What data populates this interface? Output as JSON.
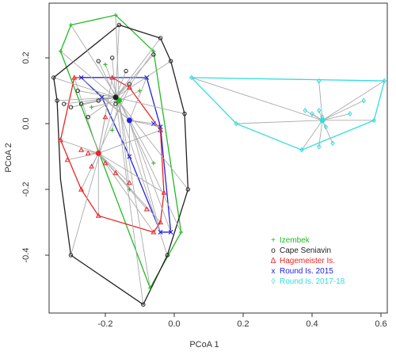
{
  "chart_data": {
    "type": "scatter",
    "title": "",
    "xlabel": "PCoA 1",
    "ylabel": "PCoA 2",
    "xlim": [
      -0.38,
      0.64
    ],
    "ylim": [
      -0.55,
      0.36
    ],
    "x_ticks": [
      -0.2,
      0.0,
      0.2,
      0.4,
      0.6
    ],
    "y_ticks": [
      -0.4,
      -0.2,
      0.0,
      0.2
    ],
    "x_tick_labels": [
      "-0.2",
      "0.0",
      "0.2",
      "0.4",
      "0.6"
    ],
    "y_tick_labels": [
      "-0.4",
      "-0.2",
      "0.0",
      "0.2"
    ],
    "grid": false,
    "legend_position": "bottom-right",
    "legend": [
      {
        "name": "Izembek",
        "symbol": "+",
        "color": "#22bb22"
      },
      {
        "name": "Cape Seniavin",
        "symbol": "o",
        "color": "#222222"
      },
      {
        "name": "Hagemeister Is.",
        "symbol": "Δ",
        "color": "#ee2222"
      },
      {
        "name": "Round Is. 2015",
        "symbol": "x",
        "color": "#2222dd"
      },
      {
        "name": "Round Is. 2017-18",
        "symbol": "◊",
        "color": "#33dddd"
      }
    ],
    "series": [
      {
        "name": "Izembek",
        "color": "#22bb22",
        "marker": "plus",
        "centroid": [
          -0.16,
          0.07
        ],
        "hull": [
          [
            -0.3,
            0.3
          ],
          [
            -0.17,
            0.33
          ],
          [
            -0.06,
            0.22
          ],
          [
            0.02,
            -0.33
          ],
          [
            -0.07,
            -0.5
          ],
          [
            -0.33,
            0.22
          ]
        ],
        "points": [
          [
            -0.3,
            0.3
          ],
          [
            -0.17,
            0.33
          ],
          [
            -0.06,
            0.22
          ],
          [
            0.02,
            -0.33
          ],
          [
            -0.07,
            -0.5
          ],
          [
            -0.33,
            0.22
          ],
          [
            -0.1,
            0.1
          ],
          [
            -0.18,
            -0.02
          ],
          [
            -0.13,
            -0.2
          ],
          [
            -0.06,
            -0.12
          ],
          [
            -0.2,
            0.18
          ],
          [
            -0.24,
            0.05
          ]
        ]
      },
      {
        "name": "Cape Seniavin",
        "color": "#222222",
        "marker": "circle",
        "centroid": [
          -0.17,
          0.08
        ],
        "hull": [
          [
            -0.35,
            0.14
          ],
          [
            -0.16,
            0.3
          ],
          [
            -0.04,
            0.26
          ],
          [
            -0.01,
            0.19
          ],
          [
            0.03,
            0.03
          ],
          [
            0.04,
            -0.2
          ],
          [
            -0.02,
            -0.4
          ],
          [
            -0.09,
            -0.55
          ],
          [
            -0.3,
            -0.4
          ],
          [
            -0.33,
            -0.17
          ],
          [
            -0.34,
            0.07
          ]
        ],
        "points": [
          [
            -0.35,
            0.14
          ],
          [
            -0.16,
            0.3
          ],
          [
            -0.04,
            0.26
          ],
          [
            -0.01,
            0.19
          ],
          [
            0.03,
            0.03
          ],
          [
            0.04,
            -0.2
          ],
          [
            -0.02,
            -0.4
          ],
          [
            -0.09,
            -0.55
          ],
          [
            -0.3,
            -0.4
          ],
          [
            -0.34,
            0.07
          ],
          [
            -0.22,
            0.19
          ],
          [
            -0.18,
            0.2
          ],
          [
            -0.27,
            0.06
          ],
          [
            -0.22,
            0.07
          ],
          [
            -0.17,
            0.06
          ],
          [
            -0.3,
            0.05
          ],
          [
            -0.32,
            0.06
          ],
          [
            -0.14,
            0.16
          ],
          [
            -0.06,
            0.21
          ],
          [
            -0.13,
            0.12
          ],
          [
            -0.28,
            0.1
          ],
          [
            -0.25,
            0.02
          ]
        ]
      },
      {
        "name": "Hagemeister Is.",
        "color": "#ee2222",
        "marker": "triangle",
        "centroid": [
          -0.22,
          -0.09
        ],
        "hull": [
          [
            -0.29,
            0.14
          ],
          [
            -0.18,
            0.14
          ],
          [
            -0.13,
            0.11
          ],
          [
            -0.04,
            -0.02
          ],
          [
            -0.03,
            -0.21
          ],
          [
            -0.04,
            -0.3
          ],
          [
            -0.06,
            -0.33
          ],
          [
            -0.22,
            -0.28
          ],
          [
            -0.27,
            -0.2
          ],
          [
            -0.33,
            -0.05
          ]
        ],
        "points": [
          [
            -0.29,
            0.14
          ],
          [
            -0.18,
            0.14
          ],
          [
            -0.13,
            0.11
          ],
          [
            -0.04,
            -0.02
          ],
          [
            -0.03,
            -0.21
          ],
          [
            -0.04,
            -0.3
          ],
          [
            -0.06,
            -0.33
          ],
          [
            -0.22,
            -0.28
          ],
          [
            -0.27,
            -0.2
          ],
          [
            -0.33,
            -0.05
          ],
          [
            -0.25,
            -0.09
          ],
          [
            -0.27,
            -0.08
          ],
          [
            -0.2,
            -0.12
          ],
          [
            -0.13,
            -0.18
          ],
          [
            -0.17,
            -0.15
          ],
          [
            -0.08,
            -0.26
          ],
          [
            -0.24,
            -0.13
          ],
          [
            -0.2,
            0.02
          ],
          [
            -0.31,
            -0.11
          ]
        ]
      },
      {
        "name": "Round Is. 2015",
        "color": "#2222dd",
        "marker": "x",
        "centroid": [
          -0.13,
          0.01
        ],
        "hull": [
          [
            -0.27,
            0.14
          ],
          [
            -0.08,
            0.14
          ],
          [
            -0.04,
            -0.01
          ],
          [
            -0.01,
            -0.33
          ],
          [
            -0.04,
            -0.33
          ],
          [
            -0.13,
            -0.1
          ],
          [
            -0.21,
            0.08
          ]
        ],
        "points": [
          [
            -0.27,
            0.14
          ],
          [
            -0.08,
            0.14
          ],
          [
            -0.04,
            -0.01
          ],
          [
            -0.01,
            -0.33
          ],
          [
            -0.04,
            -0.33
          ],
          [
            -0.13,
            -0.1
          ],
          [
            -0.21,
            0.08
          ],
          [
            -0.06,
            0.0
          ]
        ]
      },
      {
        "name": "Round Is. 2017-18",
        "color": "#33dddd",
        "marker": "diamond",
        "centroid": [
          0.43,
          0.01
        ],
        "hull": [
          [
            0.05,
            0.14
          ],
          [
            0.61,
            0.13
          ],
          [
            0.58,
            0.01
          ],
          [
            0.37,
            -0.08
          ],
          [
            0.18,
            0.0
          ]
        ],
        "points": [
          [
            0.05,
            0.14
          ],
          [
            0.61,
            0.13
          ],
          [
            0.58,
            0.01
          ],
          [
            0.37,
            -0.08
          ],
          [
            0.18,
            0.0
          ],
          [
            0.4,
            0.03
          ],
          [
            0.42,
            0.04
          ],
          [
            0.43,
            0.02
          ],
          [
            0.44,
            -0.01
          ],
          [
            0.46,
            -0.06
          ],
          [
            0.42,
            -0.07
          ],
          [
            0.38,
            0.04
          ],
          [
            0.51,
            0.03
          ],
          [
            0.55,
            0.07
          ],
          [
            0.42,
            0.13
          ]
        ]
      }
    ]
  }
}
